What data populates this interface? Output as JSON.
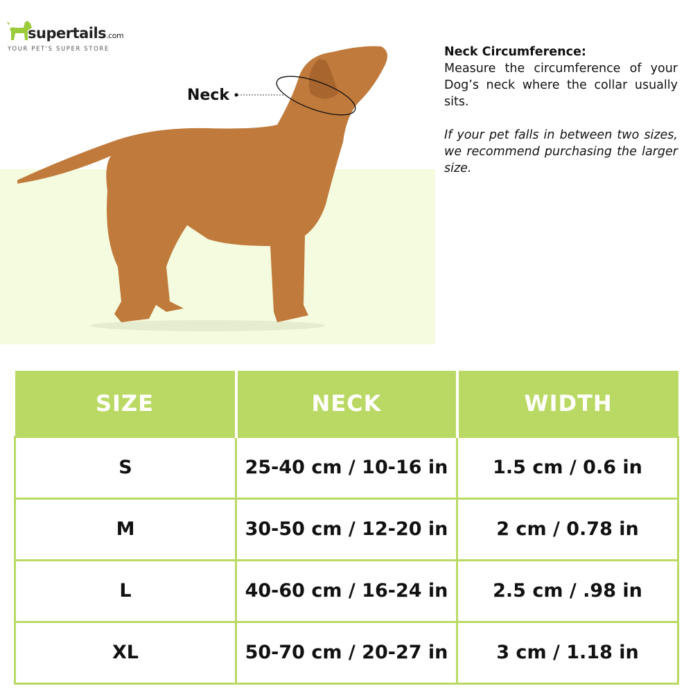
{
  "logo": {
    "brand": "supertails",
    "domain": ".com",
    "tagline": "YOUR PET'S SUPER STORE"
  },
  "diagram": {
    "neck_label": "Neck"
  },
  "info": {
    "heading": "Neck Circumference:",
    "body": "Measure the circumference of your Dog’s neck where the collar usually sits.",
    "note": "If your pet falls in between two sizes, we recommend purchasing the larger size."
  },
  "colors": {
    "accent": "#bad964",
    "backdrop": "#f4fbde",
    "dog": "#c07a3c"
  },
  "table": {
    "headers": [
      "SIZE",
      "NECK",
      "WIDTH"
    ],
    "rows": [
      [
        "S",
        "25-40 cm / 10-16 in",
        "1.5 cm / 0.6 in"
      ],
      [
        "M",
        "30-50 cm / 12-20 in",
        "2 cm / 0.78 in"
      ],
      [
        "L",
        "40-60 cm / 16-24 in",
        "2.5 cm / .98 in"
      ],
      [
        "XL",
        "50-70 cm / 20-27 in",
        "3 cm / 1.18 in"
      ]
    ]
  }
}
